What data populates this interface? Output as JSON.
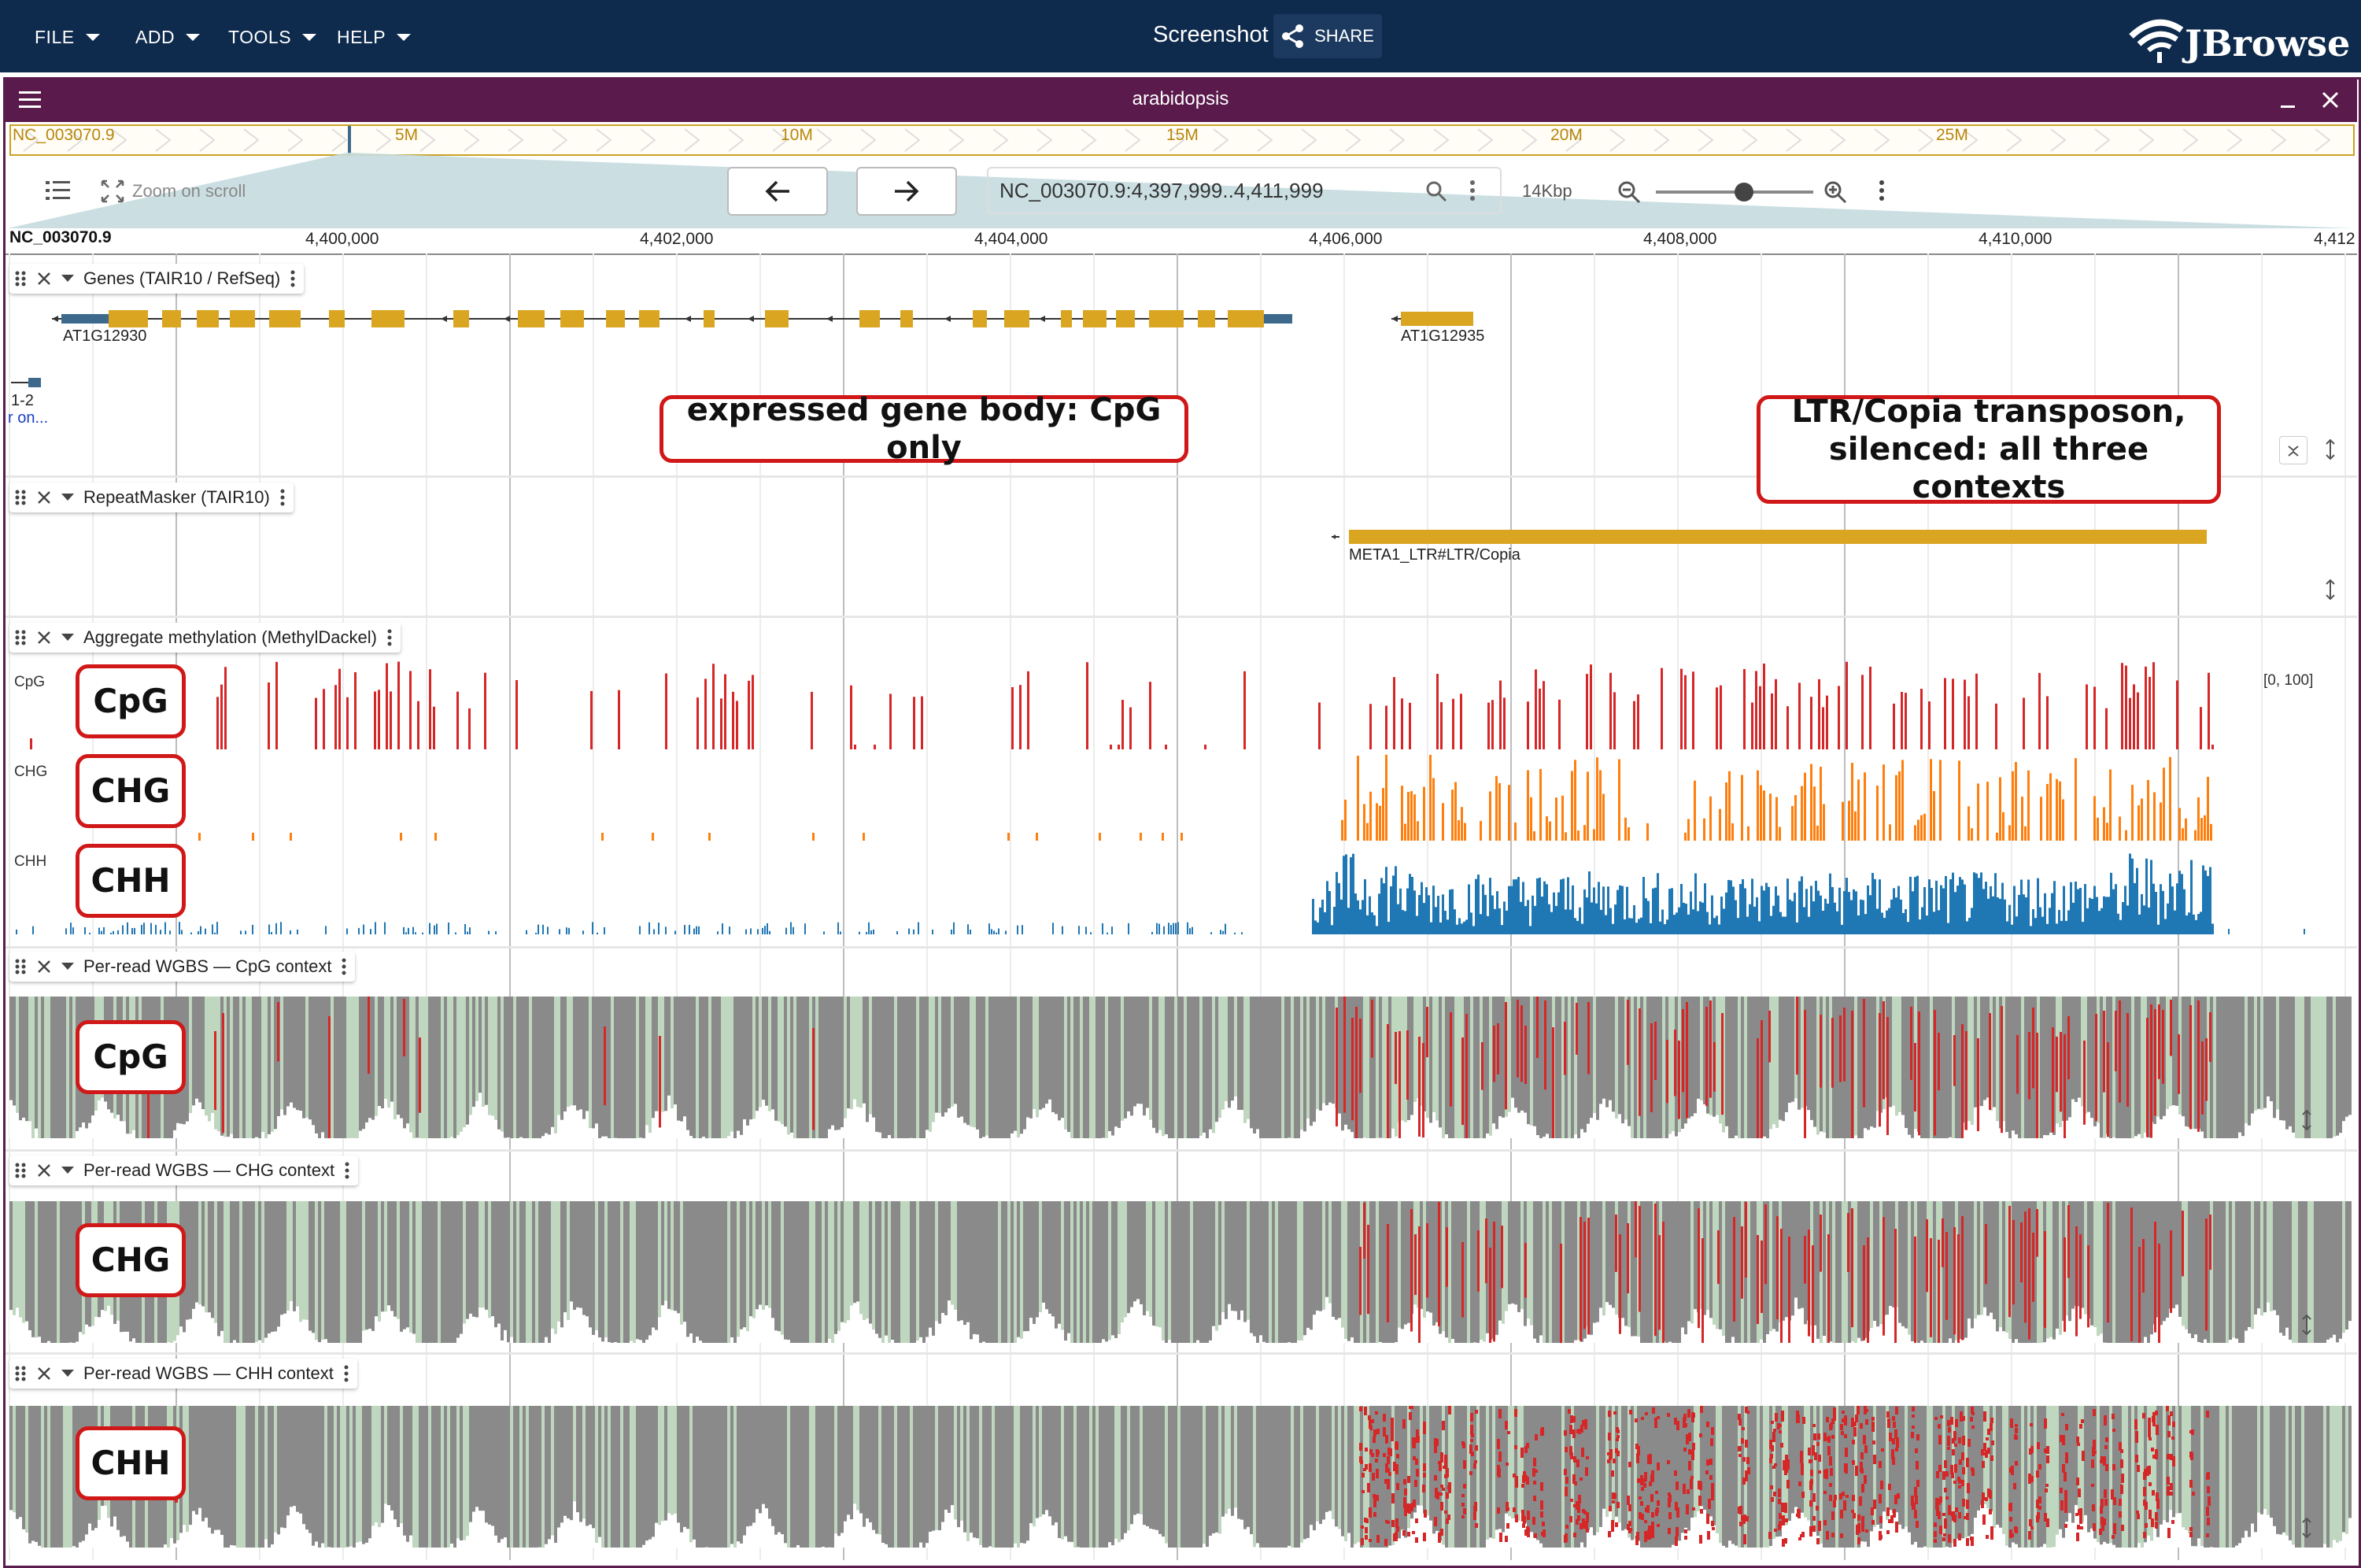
{
  "menubar": {
    "items": [
      {
        "label": "FILE"
      },
      {
        "label": "ADD"
      },
      {
        "label": "TOOLS"
      },
      {
        "label": "HELP"
      }
    ],
    "session_title": "Screenshot",
    "share_label": "SHARE",
    "logo_text": "JBrowse"
  },
  "view": {
    "title": "arabidopsis",
    "overview": {
      "refname": "NC_003070.9",
      "ticks": [
        "5M",
        "10M",
        "15M",
        "20M",
        "25M"
      ]
    },
    "nav": {
      "zoom_on_scroll": "Zoom on scroll",
      "locstring": "NC_003070.9:4,397,999..4,411,999",
      "span": "14Kbp"
    },
    "ruler": {
      "refname": "NC_003070.9",
      "ticks": [
        "4,400,000",
        "4,402,000",
        "4,404,000",
        "4,406,000",
        "4,408,000",
        "4,410,000",
        "4,412"
      ]
    }
  },
  "tracks": {
    "genes": {
      "name": "Genes (TAIR10 / RefSeq)",
      "features": [
        "AT1G12930",
        "AT1G12935"
      ],
      "edge_label_1": "1-2",
      "edge_label_2": "r on..."
    },
    "repeats": {
      "name": "RepeatMasker (TAIR10)",
      "features": [
        "META1_LTR#LTR/Copia"
      ]
    },
    "aggregate": {
      "name": "Aggregate methylation (MethylDackel)",
      "contexts": [
        "CpG",
        "CHG",
        "CHH"
      ],
      "range_label": "[0, 100]"
    },
    "perread_cpg": {
      "name": "Per-read WGBS — CpG context"
    },
    "perread_chg": {
      "name": "Per-read WGBS — CHG context"
    },
    "perread_chh": {
      "name": "Per-read WGBS — CHH context"
    }
  },
  "annotations": {
    "gene_body": "expressed gene body: CpG only",
    "transposon_line1": "LTR/Copia transposon,",
    "transposon_line2": "silenced: all three contexts",
    "cpg": "CpG",
    "chg": "CHG",
    "chh": "CHH"
  },
  "colors": {
    "topbar": "#0e2a4c",
    "view_header": "#5a1a4c",
    "gene": "#daa520",
    "utr": "#3d6a8c",
    "cpg": "#d62728",
    "chg": "#ff7f0e",
    "chh": "#1f77b4",
    "annotation_border": "#d01818"
  }
}
